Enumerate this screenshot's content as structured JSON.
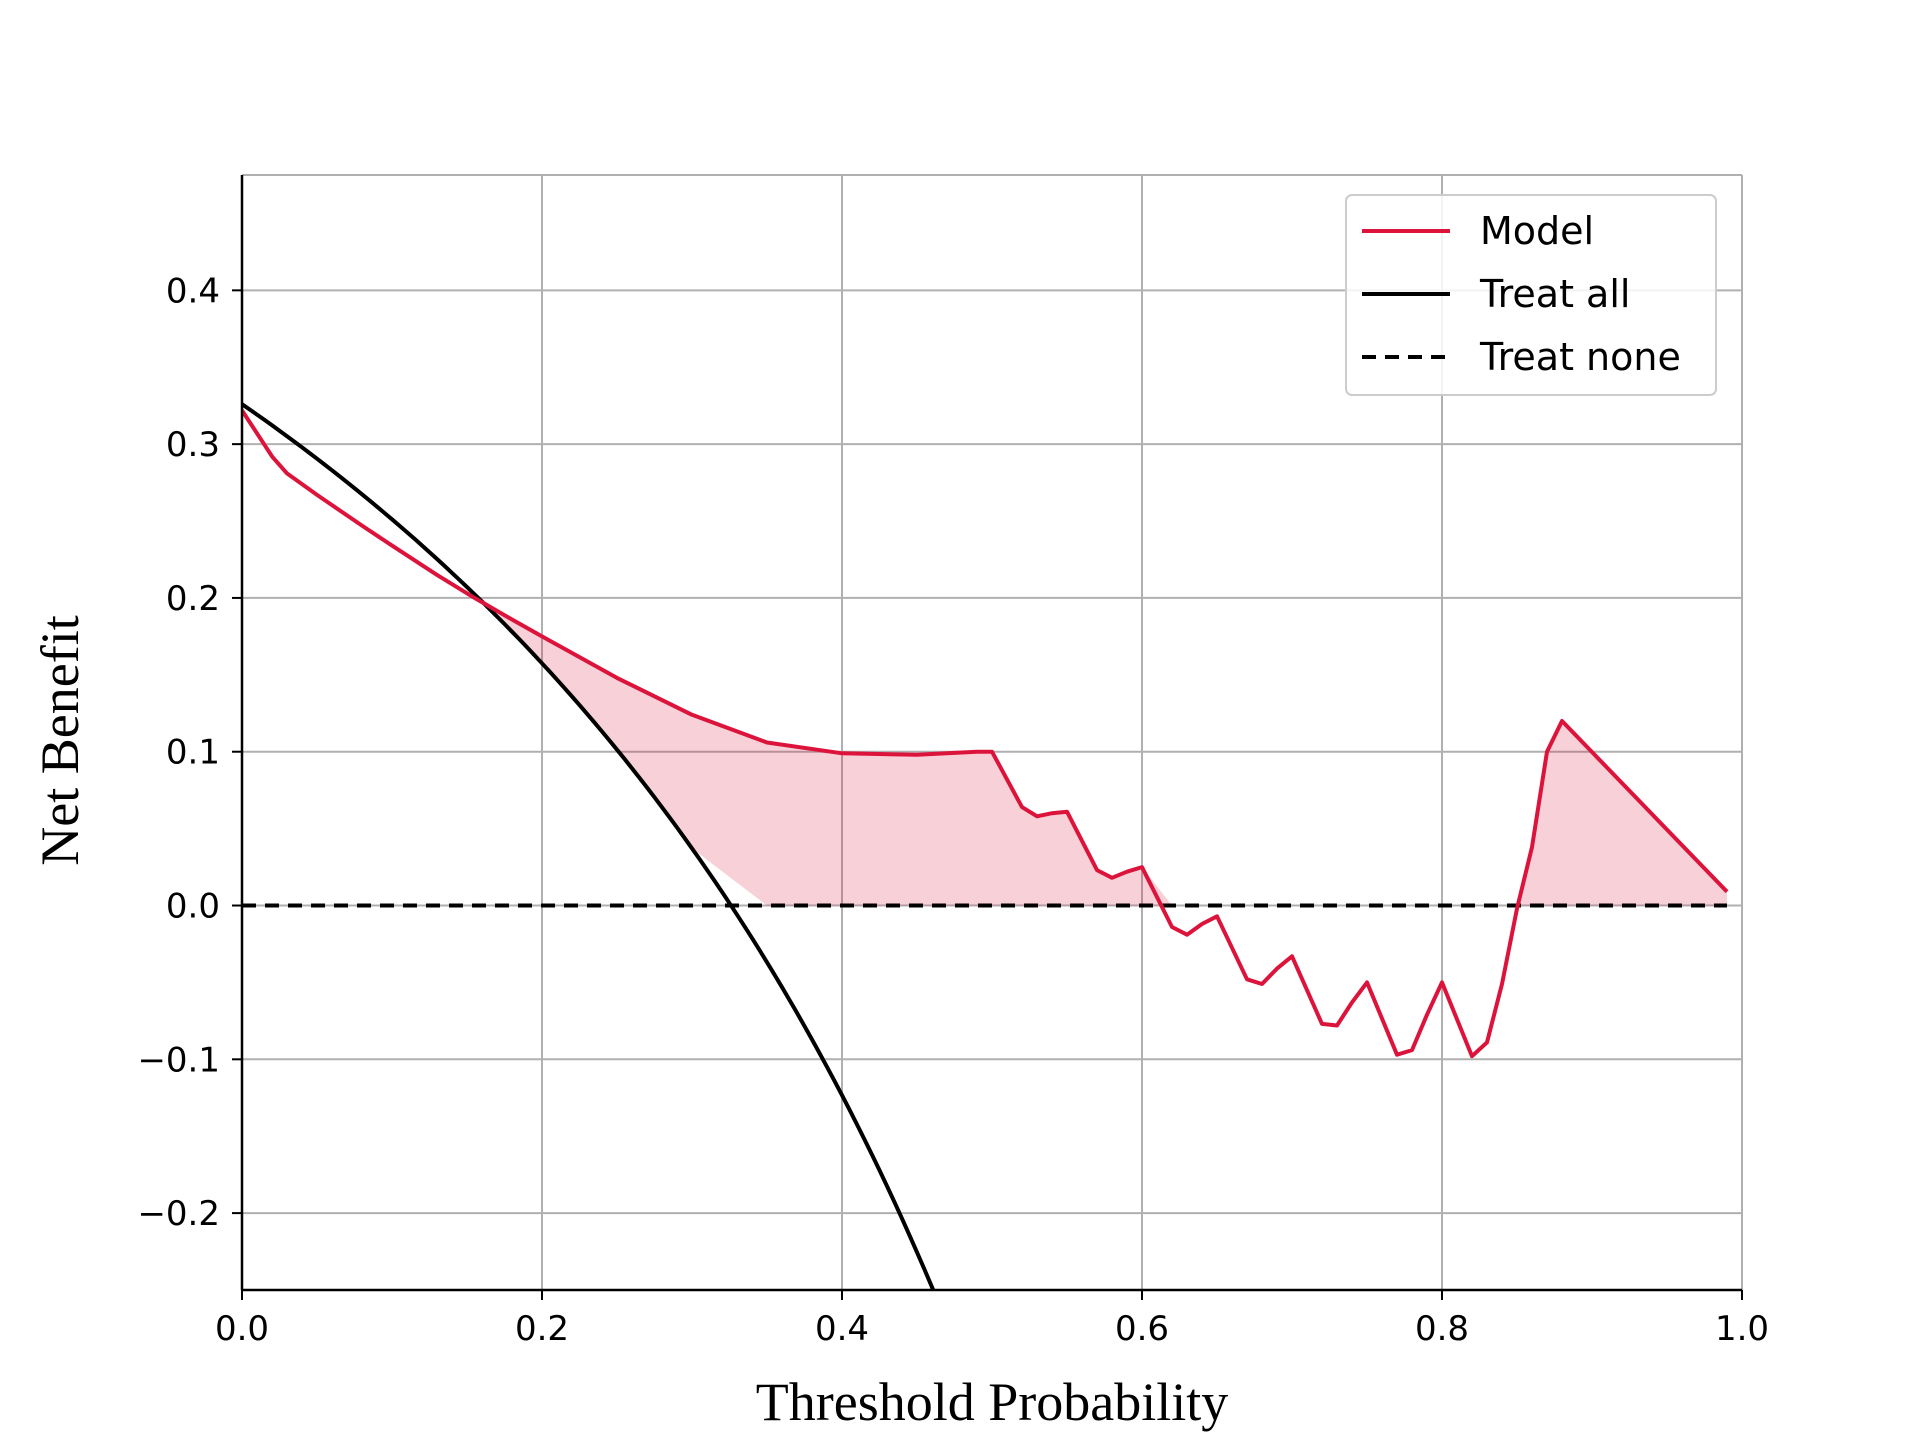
{
  "chart_data": {
    "type": "line",
    "title": "",
    "xlabel": "Threshold Probability",
    "ylabel": "Net Benefit",
    "xlim": [
      0.0,
      1.0
    ],
    "ylim": [
      -0.25,
      0.475
    ],
    "grid": true,
    "legend_position": "top-right",
    "x_ticks": [
      0.0,
      0.2,
      0.4,
      0.6,
      0.8,
      1.0
    ],
    "x_tick_labels": [
      "0.0",
      "0.2",
      "0.4",
      "0.6",
      "0.8",
      "1.0"
    ],
    "y_ticks": [
      -0.2,
      -0.1,
      0.0,
      0.1,
      0.2,
      0.3,
      0.4
    ],
    "y_tick_labels": [
      "−0.2",
      "−0.1",
      "0.0",
      "0.1",
      "0.2",
      "0.3",
      "0.4"
    ],
    "fill": "shaded area where Model net benefit exceeds max(Treat all, Treat none)",
    "series": [
      {
        "name": "Model",
        "color": "#dc143c",
        "style": "solid",
        "x": [
          0.0,
          0.02,
          0.03,
          0.05,
          0.08,
          0.1,
          0.13,
          0.155,
          0.18,
          0.2,
          0.25,
          0.3,
          0.35,
          0.4,
          0.45,
          0.49,
          0.5,
          0.52,
          0.53,
          0.54,
          0.55,
          0.57,
          0.58,
          0.59,
          0.6,
          0.62,
          0.63,
          0.64,
          0.65,
          0.67,
          0.68,
          0.69,
          0.7,
          0.72,
          0.73,
          0.74,
          0.75,
          0.77,
          0.78,
          0.79,
          0.8,
          0.82,
          0.83,
          0.84,
          0.85,
          0.86,
          0.87,
          0.88,
          0.99
        ],
        "y": [
          0.322,
          0.292,
          0.281,
          0.267,
          0.247,
          0.234,
          0.215,
          0.2,
          0.186,
          0.175,
          0.148,
          0.124,
          0.106,
          0.099,
          0.098,
          0.1,
          0.1,
          0.064,
          0.058,
          0.06,
          0.061,
          0.023,
          0.018,
          0.022,
          0.025,
          -0.014,
          -0.019,
          -0.012,
          -0.007,
          -0.048,
          -0.051,
          -0.041,
          -0.033,
          -0.077,
          -0.078,
          -0.063,
          -0.05,
          -0.097,
          -0.094,
          -0.071,
          -0.05,
          -0.098,
          -0.089,
          -0.051,
          -0.002,
          0.038,
          0.1,
          0.12,
          0.009
        ]
      },
      {
        "name": "Treat all",
        "color": "#000000",
        "style": "solid",
        "formula": "0.326 - (1 - 0.326) * x / (1 - x)",
        "x": [
          0.0,
          0.05,
          0.1,
          0.15,
          0.2,
          0.25,
          0.3,
          0.326,
          0.35,
          0.4,
          0.45,
          0.46
        ],
        "y": [
          0.326,
          0.291,
          0.251,
          0.207,
          0.158,
          0.101,
          0.037,
          0.0,
          -0.037,
          -0.123,
          -0.225,
          -0.248
        ]
      },
      {
        "name": "Treat none",
        "color": "#000000",
        "style": "dashed",
        "x": [
          0.0,
          0.99
        ],
        "y": [
          0.0,
          0.0
        ]
      }
    ]
  }
}
